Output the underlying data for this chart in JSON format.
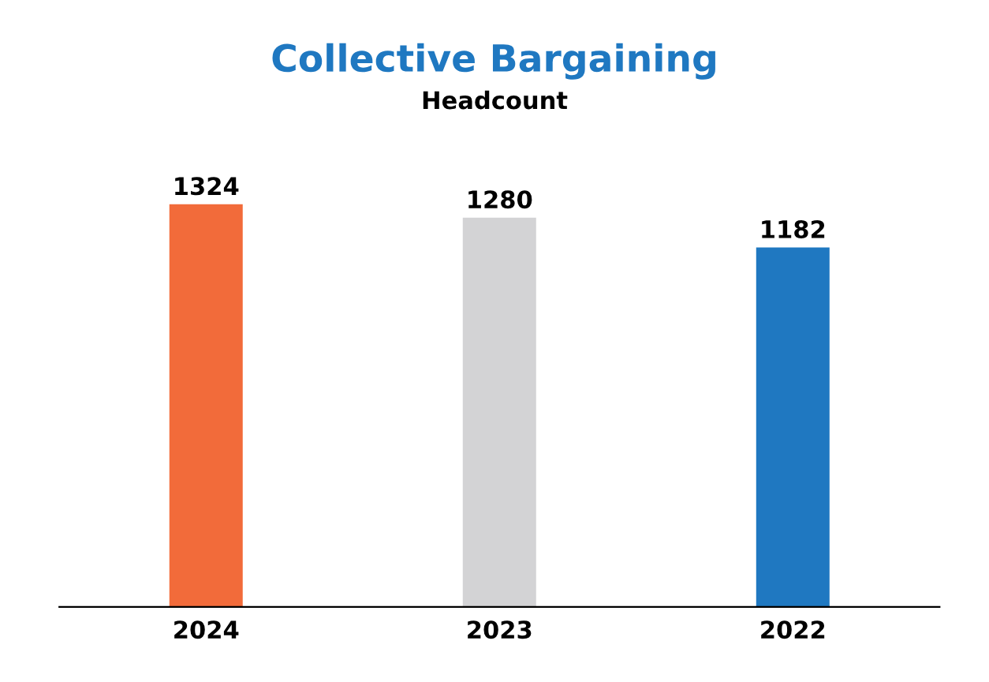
{
  "chart_data": {
    "type": "bar",
    "title": "Collective Bargaining",
    "subtitle": "Headcount",
    "categories": [
      "2024",
      "2023",
      "2022"
    ],
    "values": [
      1324,
      1280,
      1182
    ],
    "colors": [
      "#f26b3a",
      "#d3d3d5",
      "#1f78c1"
    ],
    "data_labels": true,
    "grid": false,
    "legend": false
  }
}
